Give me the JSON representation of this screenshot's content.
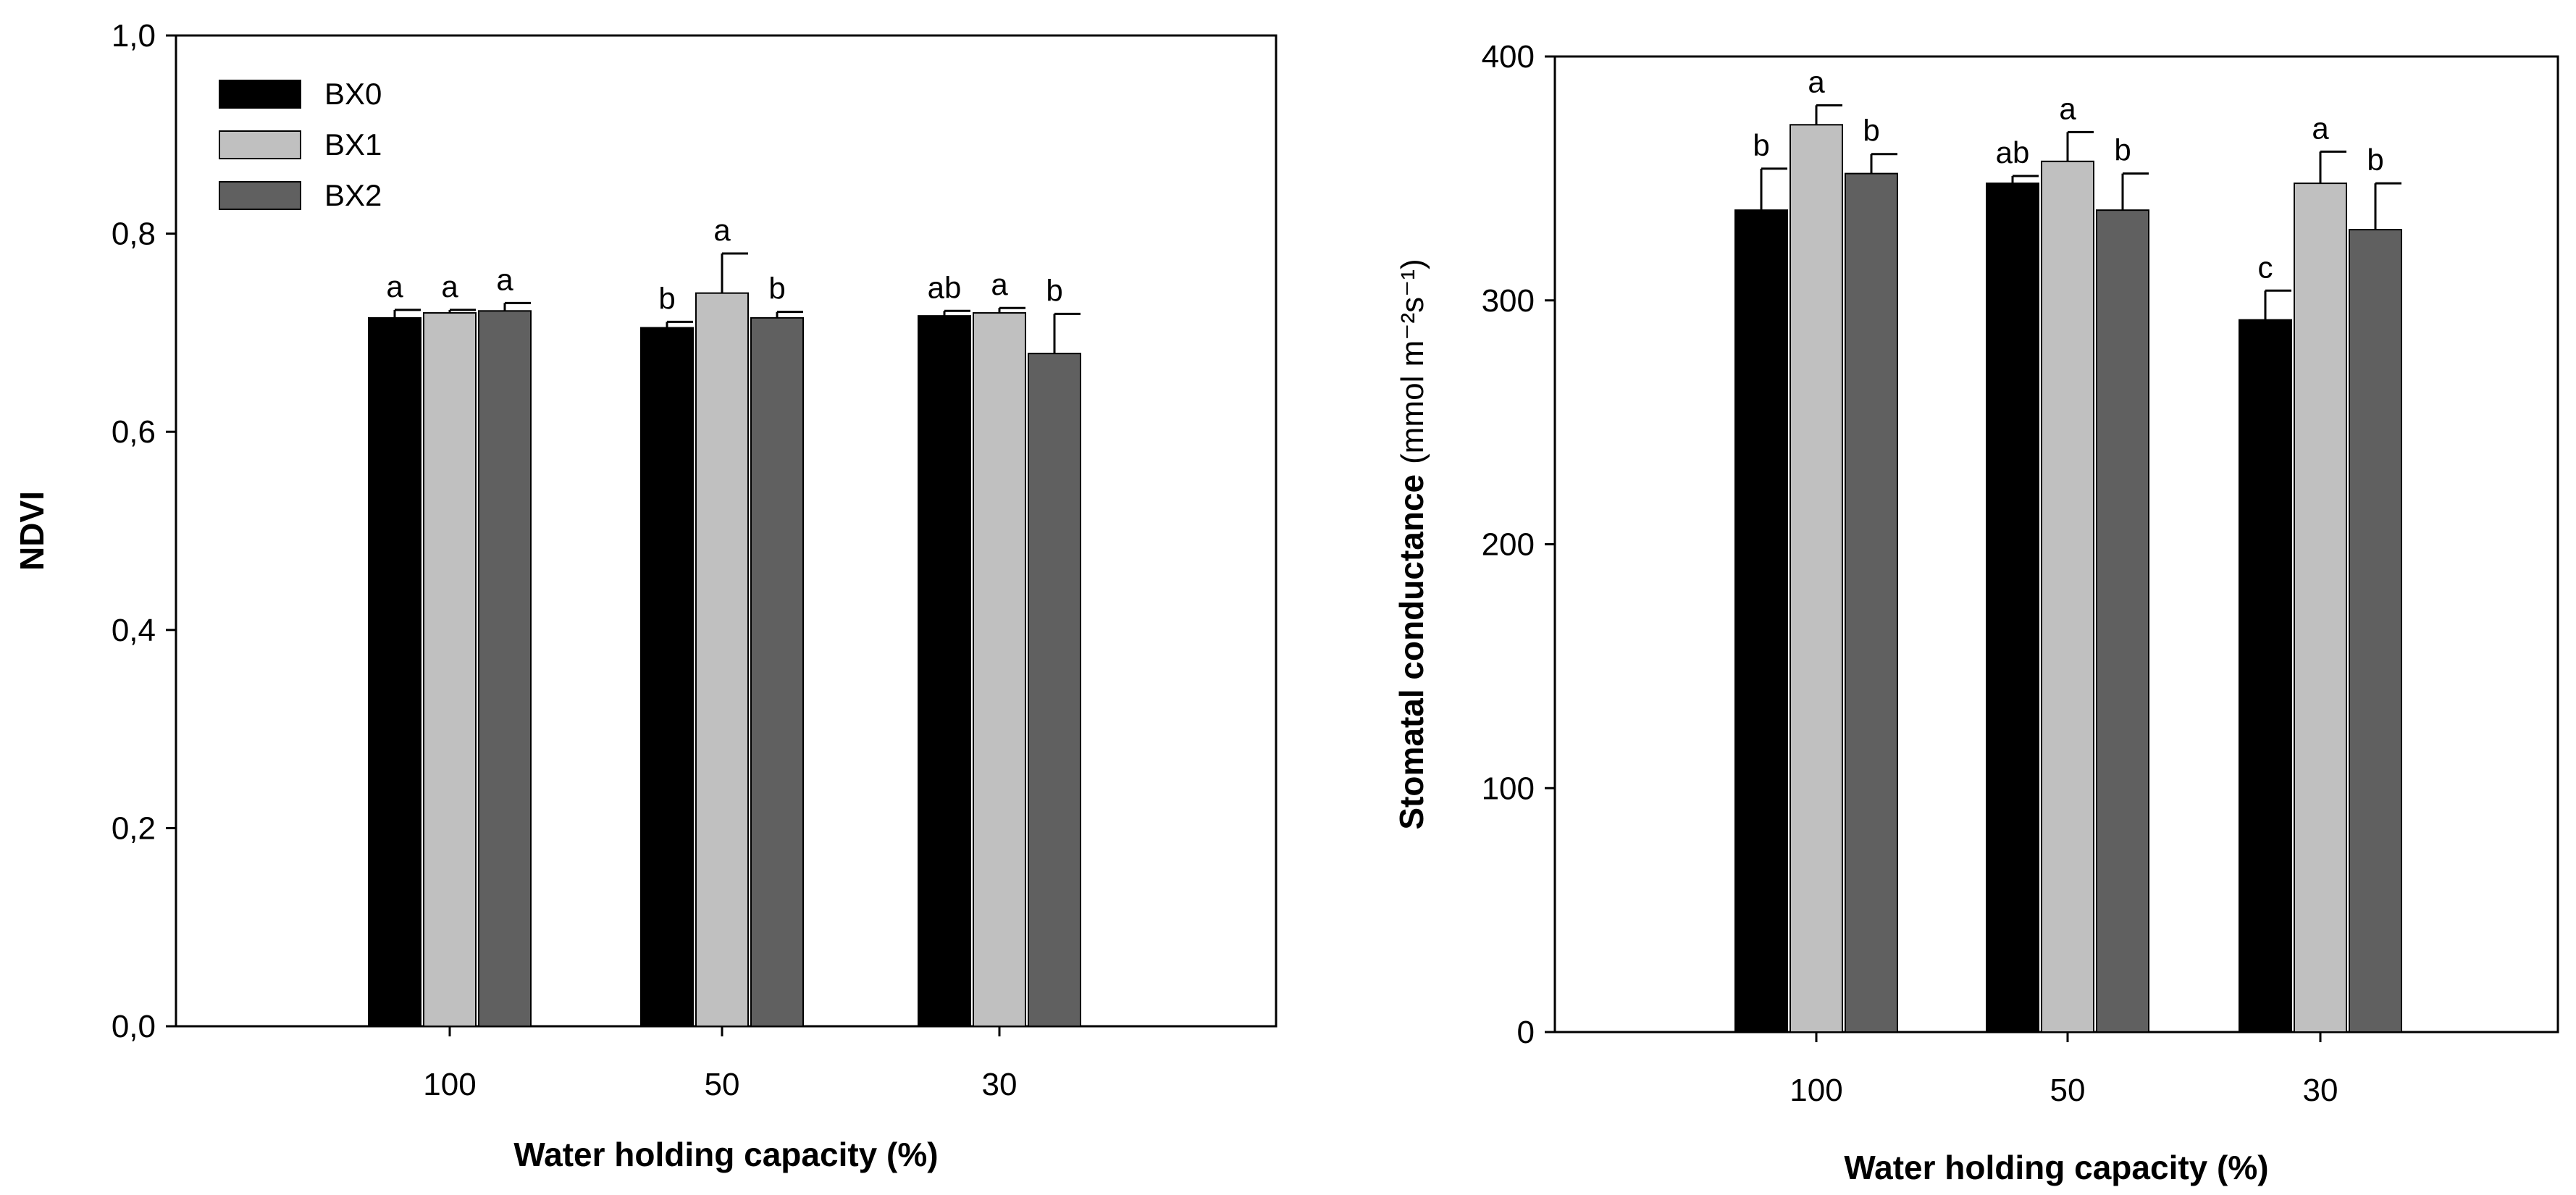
{
  "chart_data": [
    {
      "type": "bar",
      "categories": [
        "100",
        "50",
        "30"
      ],
      "series": [
        {
          "name": "BX0",
          "color": "#000000",
          "values": [
            0.715,
            0.705,
            0.717
          ],
          "errors": [
            0.008,
            0.006,
            0.005
          ],
          "letters": [
            "a",
            "b",
            "ab"
          ]
        },
        {
          "name": "BX1",
          "color": "#c0c0c0",
          "values": [
            0.72,
            0.74,
            0.72
          ],
          "errors": [
            0.003,
            0.04,
            0.005
          ],
          "letters": [
            "a",
            "a",
            "a"
          ]
        },
        {
          "name": "BX2",
          "color": "#606060",
          "values": [
            0.722,
            0.715,
            0.679
          ],
          "errors": [
            0.008,
            0.006,
            0.04
          ],
          "letters": [
            "a",
            "b",
            "b"
          ]
        }
      ],
      "title": "",
      "xlabel": "Water holding capacity (%)",
      "ylabel": "NDVI",
      "ylabel_unit": "",
      "ylim": [
        0,
        1.0
      ],
      "yticks": [
        "0,0",
        "0,2",
        "0,4",
        "0,6",
        "0,8",
        "1,0"
      ],
      "legend": "top-left",
      "grid": false
    },
    {
      "type": "bar",
      "categories": [
        "100",
        "50",
        "30"
      ],
      "series": [
        {
          "name": "BX0",
          "color": "#000000",
          "values": [
            337,
            348,
            292
          ],
          "errors": [
            17,
            3,
            12
          ],
          "letters": [
            "b",
            "ab",
            "c"
          ]
        },
        {
          "name": "BX1",
          "color": "#c0c0c0",
          "values": [
            372,
            357,
            348
          ],
          "errors": [
            8,
            12,
            13
          ],
          "letters": [
            "a",
            "a",
            "a"
          ]
        },
        {
          "name": "BX2",
          "color": "#606060",
          "values": [
            352,
            337,
            329
          ],
          "errors": [
            8,
            15,
            19
          ],
          "letters": [
            "b",
            "b",
            "b"
          ]
        }
      ],
      "title": "",
      "xlabel": "Water holding capacity (%)",
      "ylabel": "Stomatal conductance",
      "ylabel_unit": "(mmol m⁻²s⁻¹)",
      "ylim": [
        0,
        400
      ],
      "yticks": [
        "0",
        "100",
        "200",
        "300",
        "400"
      ],
      "legend": "none",
      "grid": false
    }
  ]
}
